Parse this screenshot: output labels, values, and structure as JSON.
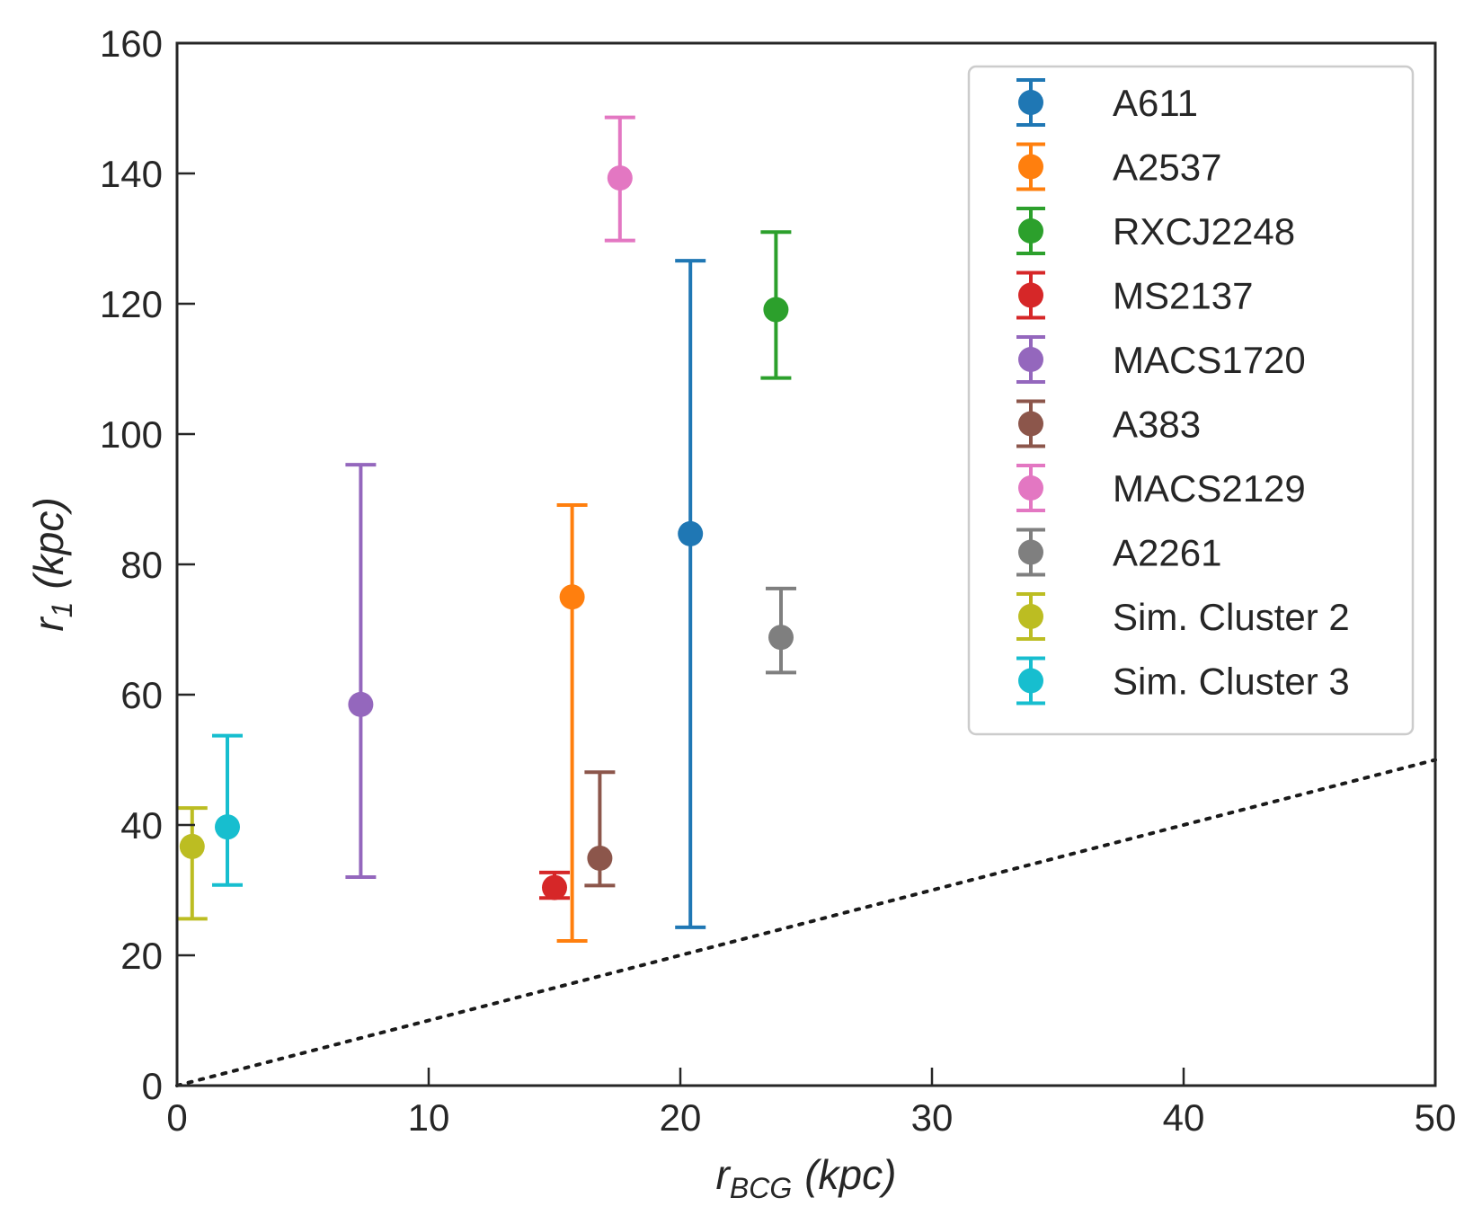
{
  "chart_data": {
    "type": "scatter",
    "title": "",
    "xlabel": {
      "main": "r",
      "sub": "BCG",
      "unit": "(kpc)"
    },
    "ylabel": {
      "main": "r",
      "sub": "1",
      "unit": "(kpc)"
    },
    "xlim": [
      0,
      50
    ],
    "ylim": [
      0,
      160
    ],
    "xticks": [
      0,
      10,
      20,
      30,
      40,
      50
    ],
    "yticks": [
      0,
      20,
      40,
      60,
      80,
      100,
      120,
      140,
      160
    ],
    "grid": false,
    "legend_position": "top-right",
    "reference_line": {
      "label": "",
      "style": "dotted",
      "color": "#1a1a1a",
      "x": [
        0,
        50
      ],
      "y": [
        0,
        50
      ]
    },
    "series": [
      {
        "name": "A611",
        "color": "#1f77b4",
        "x": 20.4,
        "y": 84.7,
        "y_low": 24.3,
        "y_high": 126.6
      },
      {
        "name": "A2537",
        "color": "#ff7f0e",
        "x": 15.7,
        "y": 75.0,
        "y_low": 22.2,
        "y_high": 89.1
      },
      {
        "name": "RXCJ2248",
        "color": "#2ca02c",
        "x": 23.8,
        "y": 119.1,
        "y_low": 108.6,
        "y_high": 131.0
      },
      {
        "name": "MS2137",
        "color": "#d62728",
        "x": 15.0,
        "y": 30.4,
        "y_low": 28.8,
        "y_high": 32.7
      },
      {
        "name": "MACS1720",
        "color": "#9467bd",
        "x": 7.3,
        "y": 58.5,
        "y_low": 32.0,
        "y_high": 95.3
      },
      {
        "name": "A383",
        "color": "#8c564b",
        "x": 16.8,
        "y": 34.9,
        "y_low": 30.7,
        "y_high": 48.1
      },
      {
        "name": "MACS2129",
        "color": "#e377c2",
        "x": 17.6,
        "y": 139.3,
        "y_low": 129.7,
        "y_high": 148.6
      },
      {
        "name": "A2261",
        "color": "#7f7f7f",
        "x": 24.0,
        "y": 68.8,
        "y_low": 63.4,
        "y_high": 76.3
      },
      {
        "name": "Sim. Cluster 2",
        "color": "#bcbd22",
        "x": 0.6,
        "y": 36.7,
        "y_low": 25.6,
        "y_high": 42.6
      },
      {
        "name": "Sim. Cluster 3",
        "color": "#17becf",
        "x": 2.0,
        "y": 39.7,
        "y_low": 30.8,
        "y_high": 53.7
      }
    ]
  }
}
